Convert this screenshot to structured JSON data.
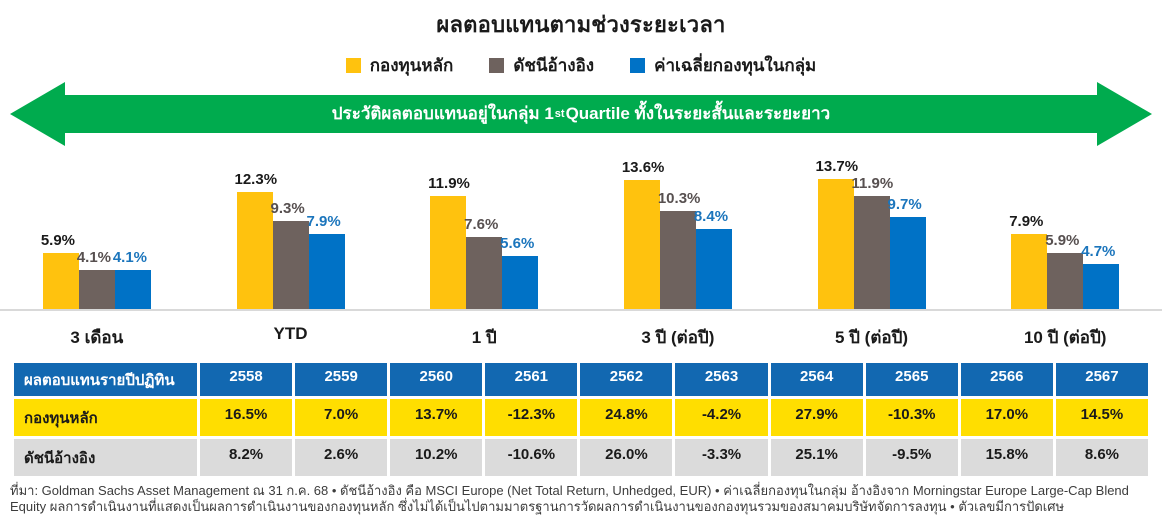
{
  "chart_data": [
    {
      "type": "bar",
      "title": "ผลตอบแทนตามช่วงระยะเวลา",
      "categories": [
        "3 เดือน",
        "YTD",
        "1 ปี",
        "3 ปี (ต่อปี)",
        "5 ปี (ต่อปี)",
        "10 ปี (ต่อปี)"
      ],
      "series": [
        {
          "name": "กองทุนหลัก",
          "color": "#FFC20E",
          "label_color": "#1A1A1A",
          "values": [
            5.9,
            12.3,
            11.9,
            13.6,
            13.7,
            7.9
          ]
        },
        {
          "name": "ดัชนีอ้างอิง",
          "color": "#6E625E",
          "label_color": "#575050",
          "values": [
            4.1,
            9.3,
            7.6,
            10.3,
            11.9,
            5.9
          ]
        },
        {
          "name": "ค่าเฉลี่ยกองทุนในกลุ่ม",
          "color": "#0072C6",
          "label_color": "#1B75BC",
          "values": [
            4.1,
            7.9,
            5.6,
            8.4,
            9.7,
            4.7
          ]
        }
      ],
      "value_suffix": "%",
      "ylim": [
        0,
        14
      ],
      "grid": false,
      "legend_position": "top",
      "annotation": {
        "shape": "double-arrow",
        "color": "#00AB4E",
        "prefix": "ประวัติผลตอบแทนอยู่ในกลุ่ม 1",
        "sup": "st",
        "suffix": " Quartile ทั้งในระยะสั้นและระยะยาว"
      }
    },
    {
      "type": "table",
      "header": [
        "ผลตอบแทนรายปีปฏิทิน",
        "2558",
        "2559",
        "2560",
        "2561",
        "2562",
        "2563",
        "2564",
        "2565",
        "2566",
        "2567"
      ],
      "header_bg": "#1268B1",
      "rows": [
        {
          "label": "กองทุนหลัก",
          "bg": "#FFDE00",
          "values": [
            "16.5%",
            "7.0%",
            "13.7%",
            "-12.3%",
            "24.8%",
            "-4.2%",
            "27.9%",
            "-10.3%",
            "17.0%",
            "14.5%"
          ]
        },
        {
          "label": "ดัชนีอ้างอิง",
          "bg": "#DBDBDB",
          "values": [
            "8.2%",
            "2.6%",
            "10.2%",
            "-10.6%",
            "26.0%",
            "-3.3%",
            "25.1%",
            "-9.5%",
            "15.8%",
            "8.6%"
          ]
        }
      ]
    }
  ],
  "footnote": "ที่มา: Goldman Sachs Asset Management ณ 31 ก.ค. 68 • ดัชนีอ้างอิง คือ MSCI Europe (Net Total Return, Unhedged, EUR) • ค่าเฉลี่ยกองทุนในกลุ่ม อ้างอิงจาก Morningstar Europe Large-Cap Blend Equity ผลการดำเนินงานที่แสดงเป็นผลการดำเนินงานของกองทุนหลัก ซึ่งไม่ได้เป็นไปตามมาตรฐานการวัดผลการดำเนินงานของกองทุนรวมของสมาคมบริษัทจัดการลงทุน • ตัวเลขมีการปัดเศษ"
}
